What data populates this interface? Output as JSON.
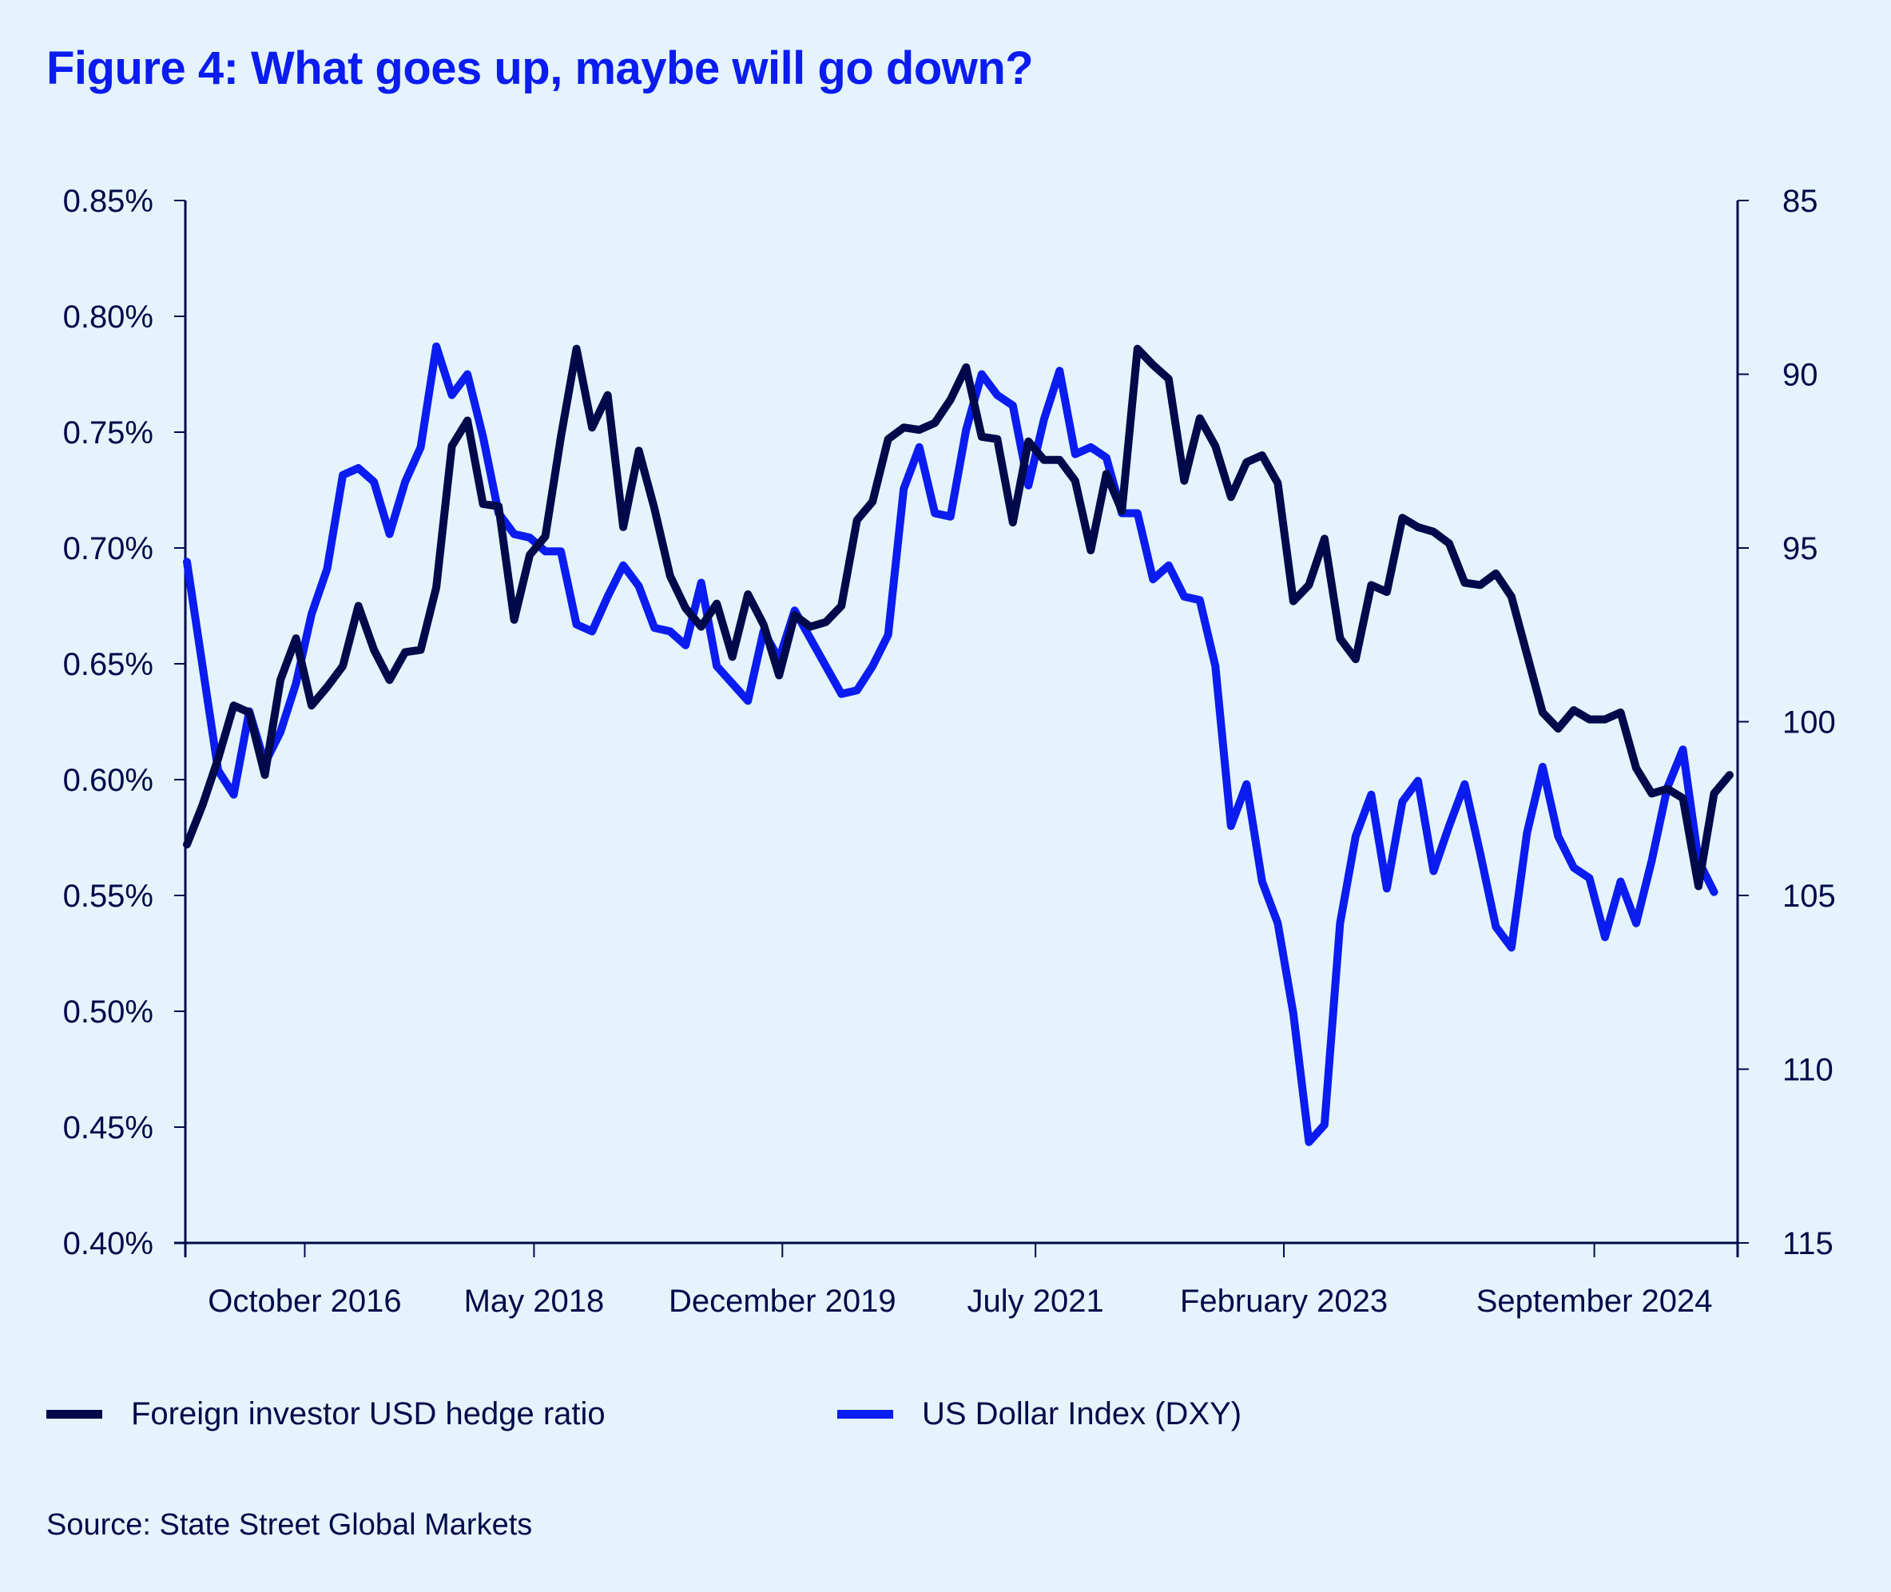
{
  "title": "Figure 4: What goes up, maybe will go down?",
  "source": "Source: State Street Global Markets",
  "colors": {
    "hedge": "#000a4a",
    "dxy": "#0a1cf0",
    "background": "#e5f4fc",
    "axis": "#000a4a"
  },
  "chart_data": {
    "type": "line",
    "title": "Figure 4: What goes up, maybe will go down?",
    "xlabel": "",
    "ylabel_left": "",
    "ylabel_right": "",
    "x_tick_labels": [
      "October 2016",
      "May 2018",
      "December 2019",
      "July 2021",
      "February 2023",
      "September 2024"
    ],
    "x_tick_index": [
      5,
      14.6,
      25,
      35.6,
      46,
      59
    ],
    "x_range_index": [
      0,
      65
    ],
    "y_left": {
      "range": [
        0.4,
        0.85
      ],
      "ticks": [
        "0.40%",
        "0.45%",
        "0.50%",
        "0.55%",
        "0.60%",
        "0.65%",
        "0.70%",
        "0.75%",
        "0.80%",
        "0.85%"
      ],
      "tick_values": [
        0.4,
        0.45,
        0.5,
        0.55,
        0.6,
        0.65,
        0.7,
        0.75,
        0.8,
        0.85
      ]
    },
    "y_right": {
      "range": [
        85,
        115
      ],
      "inverted": true,
      "ticks": [
        "85",
        "90",
        "95",
        "100",
        "105",
        "110",
        "115"
      ],
      "tick_values": [
        85,
        90,
        95,
        100,
        105,
        110,
        115
      ]
    },
    "grid": false,
    "legend_position": "bottom",
    "series": [
      {
        "name": "Foreign investor USD hedge ratio",
        "axis": "left",
        "values": [
          0.572,
          0.589,
          0.609,
          0.632,
          0.629,
          0.602,
          0.643,
          0.661,
          0.632,
          0.64,
          0.649,
          0.675,
          0.656,
          0.643,
          0.655,
          0.656,
          0.683,
          0.744,
          0.755,
          0.719,
          0.718,
          0.669,
          0.697,
          0.705,
          0.748,
          0.786,
          0.752,
          0.766,
          0.709,
          0.742,
          0.717,
          0.688,
          0.674,
          0.666,
          0.676,
          0.653,
          0.68,
          0.667,
          0.645,
          0.671,
          0.666,
          0.668,
          0.675,
          0.712,
          0.72,
          0.747,
          0.752,
          0.751,
          0.754,
          0.764,
          0.778,
          0.748,
          0.747,
          0.711,
          0.746,
          0.738,
          0.738,
          0.729,
          0.699,
          0.732,
          0.716,
          0.786,
          0.779,
          0.773,
          0.729,
          0.756,
          0.744,
          0.722,
          0.737,
          0.74,
          0.728,
          0.677,
          0.684,
          0.704,
          0.661,
          0.652,
          0.684,
          0.681,
          0.713,
          0.709,
          0.707,
          0.702,
          0.685,
          0.684,
          0.689,
          0.679,
          0.654,
          0.629,
          0.622,
          0.63,
          0.626,
          0.626,
          0.629,
          0.605,
          0.594,
          0.596,
          0.592,
          0.554,
          0.594,
          0.602
        ]
      },
      {
        "name": "US Dollar Index (DXY)",
        "axis": "right",
        "values": [
          95.4,
          98.4,
          101.4,
          102.1,
          99.7,
          101.2,
          100.3,
          98.9,
          96.9,
          95.6,
          92.9,
          92.7,
          93.1,
          94.6,
          93.1,
          92.1,
          89.2,
          90.6,
          90.0,
          91.8,
          94.0,
          94.6,
          94.7,
          95.1,
          95.1,
          97.2,
          97.4,
          96.4,
          95.5,
          96.1,
          97.3,
          97.4,
          97.8,
          96.0,
          98.4,
          98.9,
          99.4,
          97.4,
          98.2,
          96.8,
          97.6,
          98.4,
          99.2,
          99.1,
          98.4,
          97.5,
          93.3,
          92.1,
          94.0,
          94.1,
          91.6,
          90.0,
          90.6,
          90.9,
          93.2,
          91.3,
          89.9,
          92.3,
          92.1,
          92.4,
          94.0,
          94.0,
          95.9,
          95.5,
          96.4,
          96.5,
          98.4,
          103.0,
          101.8,
          104.6,
          105.8,
          108.4,
          112.1,
          111.6,
          105.8,
          103.3,
          102.1,
          104.8,
          102.3,
          101.7,
          104.3,
          103.0,
          101.8,
          103.8,
          105.9,
          106.5,
          103.2,
          101.3,
          103.3,
          104.2,
          104.5,
          106.2,
          104.6,
          105.8,
          104.0,
          101.9,
          100.8,
          104.0,
          104.9
        ]
      }
    ]
  },
  "legend": [
    {
      "label": "Foreign investor USD hedge ratio",
      "series": "hedge"
    },
    {
      "label": "US Dollar Index (DXY)",
      "series": "dxy"
    }
  ]
}
